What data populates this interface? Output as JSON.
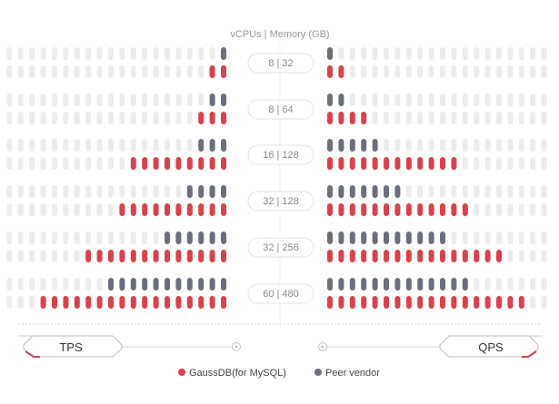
{
  "chart_data": {
    "type": "bar",
    "title": "vCPUs | Memory (GB)",
    "categories": [
      "8 | 32",
      "8 | 64",
      "16 | 128",
      "32 | 128",
      "32 | 256",
      "60 | 480"
    ],
    "max_units": 20,
    "tps": {
      "label": "TPS",
      "series": [
        {
          "name": "GaussDB(for MySQL)",
          "values": [
            2,
            3,
            9,
            10,
            13,
            17
          ]
        },
        {
          "name": "Peer vendor",
          "values": [
            1,
            2,
            3,
            4,
            6,
            11
          ]
        }
      ]
    },
    "qps": {
      "label": "QPS",
      "series": [
        {
          "name": "GaussDB(for MySQL)",
          "values": [
            2,
            4,
            12,
            13,
            16,
            18
          ]
        },
        {
          "name": "Peer vendor",
          "values": [
            1,
            2,
            5,
            7,
            11,
            13
          ]
        }
      ]
    },
    "legend": [
      {
        "name": "GaussDB(for MySQL)",
        "color": "#d9424b"
      },
      {
        "name": "Peer vendor",
        "color": "#6b6f7b"
      }
    ],
    "colors": {
      "gauss": "#d9424b",
      "peer": "#6b6f7b",
      "empty": "#ececec"
    }
  }
}
